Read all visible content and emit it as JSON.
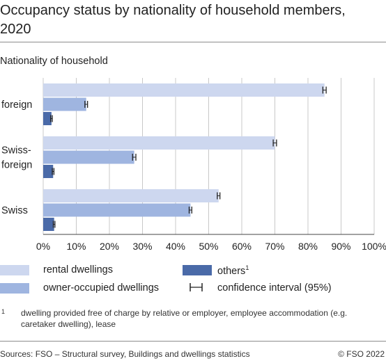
{
  "title": "Occupancy status by nationality of household members, 2020",
  "subtitle": "Nationality of household",
  "colors": {
    "rental": "#cdd7ef",
    "owner": "#9fb5e0",
    "others": "#4a6aa8",
    "grid": "#c8c8c8",
    "axis": "#444444"
  },
  "chart_data": {
    "type": "bar",
    "orientation": "horizontal",
    "categories": [
      "foreign",
      "Swiss-foreign",
      "Swiss"
    ],
    "category_lines": [
      [
        "foreign"
      ],
      [
        "Swiss-",
        "foreign"
      ],
      [
        "Swiss"
      ]
    ],
    "series": [
      {
        "name": "rental dwellings",
        "values": [
          85,
          70,
          53
        ],
        "ci": [
          0.5,
          0.5,
          0.4
        ]
      },
      {
        "name": "owner-occupied dwellings",
        "values": [
          13,
          27.5,
          44.5
        ],
        "ci": [
          0.4,
          0.5,
          0.4
        ]
      },
      {
        "name": "others",
        "values": [
          2.5,
          3,
          3.3
        ],
        "ci": [
          0.25,
          0.25,
          0.25
        ]
      }
    ],
    "xlim": [
      0,
      100
    ],
    "ticks": [
      "0%",
      "10%",
      "20%",
      "30%",
      "40%",
      "50%",
      "60%",
      "70%",
      "80%",
      "90%",
      "100%"
    ],
    "tick_values": [
      0,
      10,
      20,
      30,
      40,
      50,
      60,
      70,
      80,
      90,
      100
    ],
    "grid": true
  },
  "legend": {
    "rental": "rental dwellings",
    "owner": "owner-occupied dwellings",
    "others": "others",
    "others_sup": "1",
    "ci": "confidence interval (95%)"
  },
  "footnote": {
    "marker": "1",
    "text": "dwelling provided free of charge by relative or employer, employee accommodation (e.g. caretaker dwelling), lease"
  },
  "sources": "Sources: FSO – Structural survey, Buildings and dwellings statistics",
  "copyright": "© FSO 2022"
}
